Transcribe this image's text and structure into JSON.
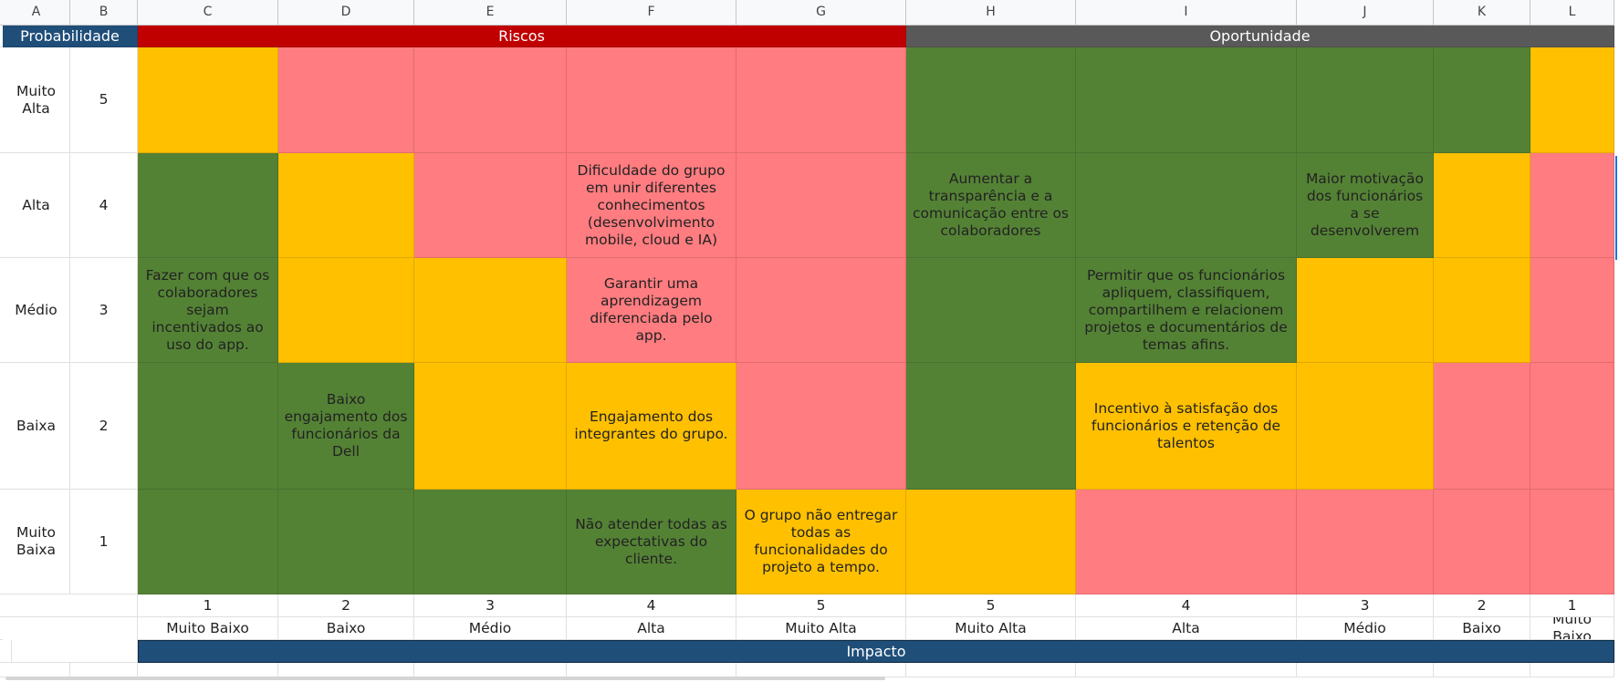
{
  "columns": [
    "A",
    "B",
    "C",
    "D",
    "E",
    "F",
    "G",
    "H",
    "I",
    "J",
    "K",
    "L"
  ],
  "headers": {
    "probabilidade": "Probabilidade",
    "riscos": "Riscos",
    "oportunidade": "Oportunidade",
    "impacto": "Impacto"
  },
  "rows": [
    {
      "label": "Muito Alta",
      "value": "5",
      "cells": [
        "",
        "",
        "",
        "",
        "",
        "",
        "",
        "",
        "",
        ""
      ]
    },
    {
      "label": "Alta",
      "value": "4",
      "cells": [
        "",
        "",
        "",
        "Dificuldade do grupo em unir diferentes conhecimentos (desenvolvimento mobile, cloud e IA)",
        "",
        "Aumentar a transparência e a comunicação entre os colaboradores",
        "",
        "Maior motivação dos funcionários a se desenvolverem",
        "",
        ""
      ]
    },
    {
      "label": "Médio",
      "value": "3",
      "cells": [
        "Fazer com que os colaboradores sejam incentivados ao uso do app.",
        "",
        "",
        "Garantir uma aprendizagem diferenciada pelo app.",
        "",
        "",
        "Permitir que os funcionários apliquem, classifiquem, compartilhem e relacionem projetos e documentários de temas afins.",
        "",
        "",
        ""
      ]
    },
    {
      "label": "Baixa",
      "value": "2",
      "cells": [
        "",
        "Baixo engajamento dos funcionários da Dell",
        "",
        "Engajamento dos integrantes do grupo.",
        "",
        "",
        "Incentivo à satisfação dos funcionários e retenção de talentos",
        "",
        "",
        ""
      ]
    },
    {
      "label": "Muito Baixa",
      "value": "1",
      "cells": [
        "",
        "",
        "",
        "Não atender todas as expectativas do cliente.",
        "O grupo não entregar todas as funcionalidades do projeto a tempo.",
        "",
        "",
        "",
        "",
        ""
      ]
    }
  ],
  "impact_numbers": [
    "1",
    "2",
    "3",
    "4",
    "5",
    "5",
    "4",
    "3",
    "2",
    "1"
  ],
  "impact_labels": [
    "Muito Baixo",
    "Baixo",
    "Médio",
    "Alta",
    "Muito Alta",
    "Muito Alta",
    "Alta",
    "Médio",
    "Baixo",
    "Muito Baixo"
  ],
  "matrix_colors": [
    [
      "yellow",
      "red",
      "red",
      "red",
      "red",
      "green",
      "green",
      "green",
      "green",
      "yellow"
    ],
    [
      "green",
      "yellow",
      "red",
      "red",
      "red",
      "green",
      "green",
      "green",
      "yellow",
      "red"
    ],
    [
      "green",
      "yellow",
      "yellow",
      "red",
      "red",
      "green",
      "green",
      "yellow",
      "yellow",
      "red"
    ],
    [
      "green",
      "green",
      "yellow",
      "yellow",
      "red",
      "green",
      "yellow",
      "yellow",
      "red",
      "red"
    ],
    [
      "green",
      "green",
      "green",
      "green",
      "yellow",
      "yellow",
      "red",
      "red",
      "red",
      "red"
    ]
  ],
  "palette": {
    "green": "#548235",
    "yellow": "#ffc000",
    "red": "#ff7c80",
    "header_blue": "#1f4e79",
    "risk_red": "#c00000",
    "opportunity_grey": "#595959"
  }
}
